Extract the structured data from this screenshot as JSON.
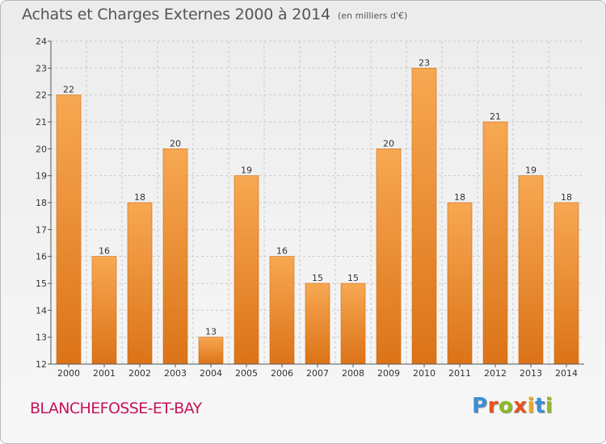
{
  "header": {
    "title": "Achats et Charges Externes 2000 à 2014",
    "unit": "(en milliers d'€)"
  },
  "footer": {
    "commune": "BLANCHEFOSSE-ET-BAY",
    "logo": "Proxiti",
    "logo_colors": [
      "#3a8fd8",
      "#e8521f",
      "#8dbb24",
      "#e8521f",
      "#f2a81d",
      "#3a8fd8",
      "#8dbb24"
    ]
  },
  "colors": {
    "bar_top": "#f7a852",
    "bar_bottom": "#dc7318",
    "grid": "#c9c9c9",
    "axis": "#555555",
    "commune": "#c4155a"
  },
  "chart_data": {
    "type": "bar",
    "categories": [
      "2000",
      "2001",
      "2002",
      "2003",
      "2004",
      "2005",
      "2006",
      "2007",
      "2008",
      "2009",
      "2010",
      "2011",
      "2012",
      "2013",
      "2014"
    ],
    "values": [
      22,
      16,
      18,
      20,
      13,
      19,
      16,
      15,
      15,
      20,
      23,
      18,
      21,
      19,
      18
    ],
    "title": "Achats et Charges Externes 2000 à 2014",
    "subtitle": "(en milliers d'€)",
    "xlabel": "",
    "ylabel": "",
    "ylim": [
      12,
      24
    ],
    "yticks": [
      12,
      13,
      14,
      15,
      16,
      17,
      18,
      19,
      20,
      21,
      22,
      23,
      24
    ],
    "grid": true,
    "data_labels": true
  }
}
